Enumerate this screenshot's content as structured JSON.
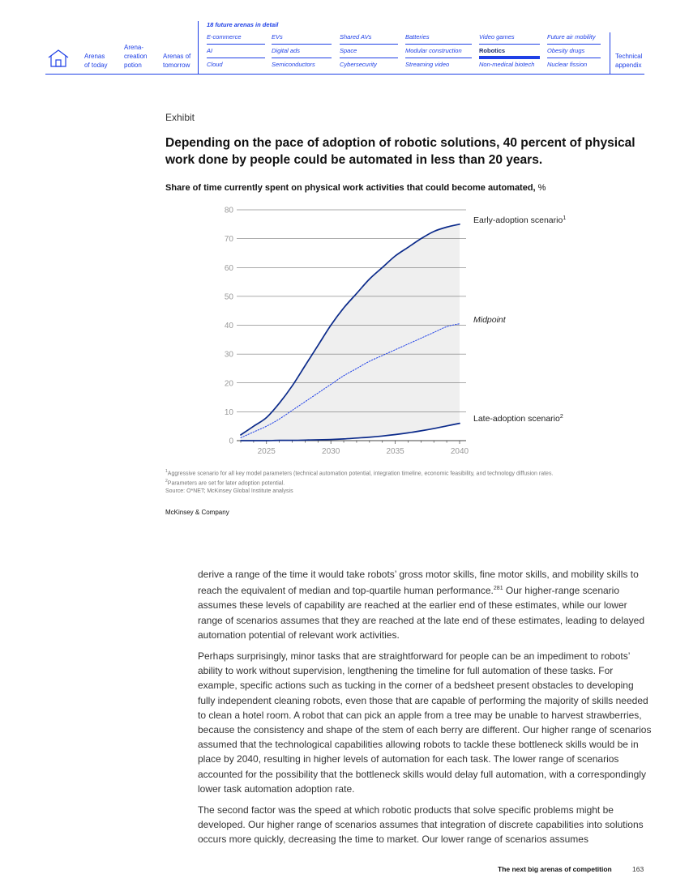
{
  "nav": {
    "arenas_today": [
      "Arenas",
      "of today"
    ],
    "arena_creation": [
      "Arena-",
      "creation",
      "potion"
    ],
    "arenas_tomorrow": [
      "Arenas of",
      "tomorrow"
    ],
    "future_title": "18 future arenas in detail",
    "columns": [
      [
        "E-commerce",
        "AI",
        "Cloud"
      ],
      [
        "EVs",
        "Digital ads",
        "Semiconductors"
      ],
      [
        "Shared AVs",
        "Space",
        "Cybersecurity"
      ],
      [
        "Batteries",
        "Modular construction",
        "Streaming video"
      ],
      [
        "Video games",
        "Robotics",
        "Non-medical biotech"
      ],
      [
        "Future air mobility",
        "Obesity drugs",
        "Nuclear fission"
      ]
    ],
    "active_item": "Robotics",
    "technical_appendix": [
      "Technical",
      "appendix"
    ]
  },
  "exhibit": {
    "label": "Exhibit",
    "title": "Depending on the pace of adoption of robotic solutions, 40 percent of physical work done by people could be automated in less than 20 years.",
    "subtitle_bold": "Share of time currently spent on physical work activities that could become automated,",
    "subtitle_unit": " %"
  },
  "chart_data": {
    "type": "line",
    "title": "Share of time currently spent on physical work activities that could become automated, %",
    "xlabel": "",
    "ylabel": "",
    "xlim": [
      2023,
      2040
    ],
    "ylim": [
      0,
      80
    ],
    "x_ticks": [
      2025,
      2030,
      2035,
      2040
    ],
    "y_ticks": [
      0,
      10,
      20,
      30,
      40,
      50,
      60,
      70,
      80
    ],
    "grid": true,
    "shaded_range_between": [
      "Early-adoption scenario",
      "Late-adoption scenario"
    ],
    "x": [
      2023,
      2024,
      2025,
      2026,
      2027,
      2028,
      2029,
      2030,
      2031,
      2032,
      2033,
      2034,
      2035,
      2036,
      2037,
      2038,
      2039,
      2040
    ],
    "series": [
      {
        "name": "Early-adoption scenario",
        "label_sup": "1",
        "style": "solid",
        "color": "#0b2a8a",
        "values": [
          2,
          5,
          8,
          13,
          19,
          26,
          33,
          40,
          46,
          51,
          56,
          60,
          64,
          67,
          70,
          72.5,
          74,
          75
        ]
      },
      {
        "name": "Midpoint",
        "label_sup": "",
        "style": "dotted",
        "color": "#1f40e6",
        "values": [
          1,
          3,
          5,
          7.5,
          10.5,
          13.5,
          16.5,
          19.5,
          22.5,
          25,
          27.5,
          29.5,
          31.5,
          33.5,
          35.5,
          37.5,
          39.5,
          40.5
        ]
      },
      {
        "name": "Late-adoption scenario",
        "label_sup": "2",
        "style": "solid",
        "color": "#0b2a8a",
        "values": [
          0,
          0,
          0,
          0.1,
          0.1,
          0.2,
          0.3,
          0.4,
          0.6,
          0.9,
          1.2,
          1.6,
          2.1,
          2.7,
          3.4,
          4.2,
          5.1,
          6
        ]
      }
    ]
  },
  "footnotes": [
    {
      "sup": "1",
      "text": "Aggressive scenario for all key model parameters (technical automation potential, integration timeline, economic feasibility, and technology diffusion rates."
    },
    {
      "sup": "2",
      "text": "Parameters are set for later adoption potential."
    },
    {
      "sup": "",
      "text": "Source: O*NET; McKinsey Global Institute analysis"
    }
  ],
  "brand": "McKinsey & Company",
  "body": {
    "p1_a": "derive a range of the time it would take robots’ gross motor skills, fine motor skills, and mobility skills to reach the equivalent of median and top-quartile human performance.",
    "p1_ref": "281",
    "p1_b": " Our higher-range scenario assumes these levels of capability are reached at the earlier end of these estimates, while our lower range of scenarios assumes that they are reached at the late end of these estimates, leading to delayed automation potential of relevant work activities.",
    "p2": "Perhaps surprisingly, minor tasks that are straightforward for people can be an impediment to robots’ ability to work without supervision, lengthening the timeline for full automation of these tasks. For example, specific actions such as tucking in the corner of a bedsheet present obstacles to developing fully independent cleaning robots, even those that are capable of performing the majority of skills needed to clean a hotel room. A robot that can pick an apple from a tree may be unable to harvest strawberries, because the consistency and shape of the stem of each berry are different. Our higher range of scenarios assumed that the technological capabilities allowing robots to tackle these bottleneck skills would be in place by 2040, resulting in higher levels of automation for each task. The lower range of scenarios accounted for the possibility that the bottleneck skills would delay full automation, with a correspondingly lower task automation adoption rate.",
    "p3": "The second factor was the speed at which robotic products that solve specific problems might be developed. Our higher range of scenarios assumes that integration of discrete capabilities into solutions occurs more quickly, decreasing the time to market. Our lower range of scenarios assumes"
  },
  "footer": {
    "title": "The next big arenas of competition",
    "page": "163"
  }
}
